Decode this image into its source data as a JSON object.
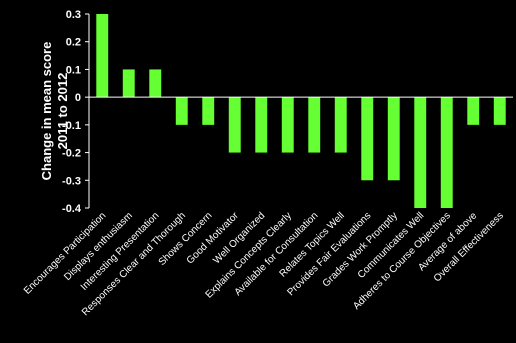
{
  "chart_data": {
    "type": "bar",
    "title": "",
    "xlabel": "",
    "ylabel_lines": [
      "Change in mean score",
      "2011 to 2012"
    ],
    "ylim": [
      -0.4,
      0.3
    ],
    "yticks": [
      0.3,
      0.2,
      0.1,
      0,
      -0.1,
      -0.2,
      -0.3,
      -0.4
    ],
    "grid": false,
    "bar_color": "#66ff33",
    "background_color": "#000000",
    "text_color": "#ffffff",
    "categories": [
      "Encourages Participation",
      "Displays enthusiasm",
      "Interesting Presentation",
      "Responses Clear and Thorough",
      "Shows Concern",
      "Good Motivator",
      "Well Organized",
      "Explains Concepts Clearly",
      "Available for Consultation",
      "Relates Topics Well",
      "Provides Fair Evaluations",
      "Grades Work Promptly",
      "Communicates Well",
      "Adheres to Course Objectives",
      "Average of above",
      "Overall Effectiveness"
    ],
    "values": [
      0.3,
      0.1,
      0.1,
      -0.1,
      -0.1,
      -0.2,
      -0.2,
      -0.2,
      -0.2,
      -0.2,
      -0.3,
      -0.3,
      -0.4,
      -0.4,
      -0.1,
      -0.1
    ]
  }
}
